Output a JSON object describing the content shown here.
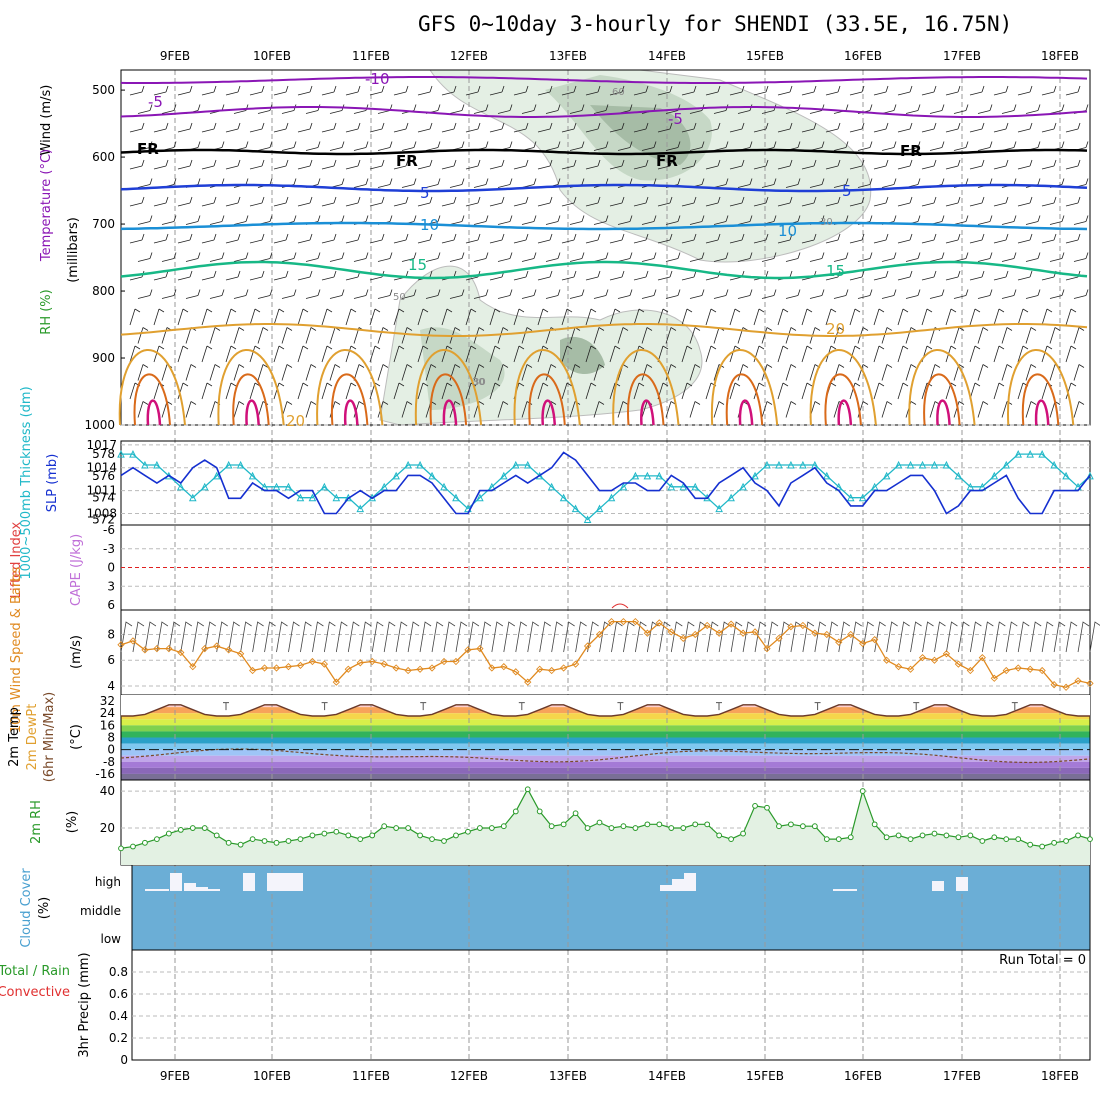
{
  "title": "GFS 0~10day 3-hourly for SHENDI (33.5E, 16.75N)",
  "colors": {
    "temp_purple": "#8a16b5",
    "temp_black": "#000000",
    "temp_blue": "#1f3fd6",
    "temp_cyan": "#1a8fd6",
    "temp_green": "#17b886",
    "temp_orange": "#e0a030",
    "temp_dorange": "#d96a1a",
    "temp_magenta": "#d0107a",
    "rh_green": "#9fc79f",
    "slp": "#1530d0",
    "thickness": "#20b8c8",
    "wind_speed": "#e08a20",
    "rh2m": "#2a9a2a",
    "cloud_bg": "#6baed6",
    "li_zero": "#e02020"
  },
  "dates": [
    "9FEB",
    "10FEB",
    "11FEB",
    "12FEB",
    "13FEB",
    "14FEB",
    "15FEB",
    "16FEB",
    "17FEB",
    "18FEB"
  ],
  "panels": {
    "upper": {
      "labels": [
        "Wind (m/s)",
        "Temperature (°C)",
        "RH (%)",
        "(millibars)"
      ],
      "ticks": [
        "500",
        "600",
        "700",
        "800",
        "900",
        "1000"
      ],
      "contour_labels": [
        "-10",
        "-5",
        "-5",
        "FR",
        "FR",
        "FR",
        "FR",
        "5",
        "5",
        "10",
        "10",
        "15",
        "15",
        "20",
        "20"
      ],
      "rh_labels": [
        "60",
        "30",
        "30",
        "50",
        "30"
      ]
    },
    "pressure": {
      "labels": [
        "1000~500mb Thickness (dm)",
        "SLP (mb)"
      ],
      "left_ticks": [
        "578",
        "576",
        "574",
        "572"
      ],
      "right_ticks": [
        "1017",
        "1014",
        "1011",
        "1008"
      ]
    },
    "stability": {
      "labels": [
        "Lifted Index",
        "CAPE (J/kg)"
      ],
      "ticks": [
        "-6",
        "-3",
        "0",
        "3",
        "6"
      ]
    },
    "wind": {
      "labels": [
        "10m Wind Speed & Barbs",
        "(m/s)"
      ],
      "ticks": [
        "8",
        "6",
        "4"
      ]
    },
    "temp": {
      "labels": [
        "2m Temp",
        "2m DewPt",
        "(6hr Min/Max)",
        "(°C)"
      ],
      "ticks": [
        "32",
        "24",
        "16",
        "8",
        "0",
        "-8",
        "-16"
      ]
    },
    "rh": {
      "labels": [
        "2m RH",
        "(%)"
      ],
      "ticks": [
        "40",
        "20"
      ]
    },
    "cloud": {
      "labels": [
        "Cloud Cover",
        "(%)"
      ],
      "ticks": [
        "high",
        "middle",
        "low"
      ]
    },
    "precip": {
      "labels": [
        "Total / Rain",
        "Convective",
        "3hr Precip (mm)"
      ],
      "ticks": [
        "0.8",
        "0.6",
        "0.4",
        "0.2",
        "0"
      ],
      "run_total": "Run Total = 0"
    }
  },
  "chart_data": [
    {
      "type": "line",
      "title": "1000~500mb Thickness / SLP",
      "ylabel": "SLP (mb)",
      "series": [
        {
          "name": "SLP (mb)",
          "values": [
            1013,
            1014,
            1013,
            1012,
            1013,
            1012,
            1014,
            1015,
            1014,
            1010,
            1010,
            1012,
            1011,
            1011,
            1010,
            1011,
            1011,
            1008,
            1008,
            1010,
            1011,
            1010,
            1011,
            1011,
            1013,
            1013,
            1012,
            1010,
            1008,
            1008,
            1011,
            1011,
            1012,
            1013,
            1012,
            1013,
            1014,
            1016,
            1015,
            1013,
            1011,
            1011,
            1012,
            1012,
            1011,
            1011,
            1013,
            1012,
            1010,
            1010,
            1012,
            1013,
            1014,
            1012,
            1011,
            1009,
            1012,
            1013,
            1014,
            1012,
            1011,
            1009,
            1009,
            1011,
            1011,
            1012,
            1013,
            1013,
            1011,
            1008,
            1009,
            1011,
            1011,
            1012,
            1013,
            1010,
            1008,
            1008,
            1011,
            1011,
            1011,
            1013
          ]
        },
        {
          "name": "1000~500mb Thickness (dm)",
          "values": [
            578,
            578,
            577,
            577,
            576,
            575,
            574,
            575,
            576,
            577,
            577,
            576,
            575,
            575,
            575,
            574,
            574,
            575,
            574,
            574,
            573,
            574,
            575,
            576,
            577,
            577,
            576,
            575,
            574,
            573,
            574,
            575,
            576,
            577,
            577,
            576,
            575,
            574,
            573,
            572,
            573,
            574,
            575,
            576,
            576,
            576,
            575,
            575,
            575,
            574,
            573,
            574,
            575,
            576,
            577,
            577,
            577,
            577,
            577,
            576,
            575,
            574,
            574,
            575,
            576,
            577,
            577,
            577,
            577,
            577,
            576,
            575,
            575,
            576,
            577,
            578,
            578,
            578,
            577,
            576,
            575,
            576
          ]
        }
      ],
      "left_ylim": [
        571.5,
        579.2
      ],
      "right_ylim": [
        1006.5,
        1017.5
      ]
    },
    {
      "type": "line",
      "title": "10m Wind Speed",
      "ylabel": "(m/s)",
      "values": [
        7.2,
        7.5,
        6.8,
        6.9,
        6.9,
        6.6,
        5.5,
        6.9,
        7.1,
        6.8,
        6.5,
        5.2,
        5.4,
        5.4,
        5.5,
        5.6,
        5.9,
        5.7,
        4.3,
        5.3,
        5.8,
        5.9,
        5.7,
        5.4,
        5.2,
        5.3,
        5.4,
        5.9,
        5.9,
        6.8,
        6.9,
        5.4,
        5.5,
        5.1,
        4.3,
        5.3,
        5.2,
        5.4,
        5.7,
        7.1,
        8.0,
        9.0,
        9.0,
        9.0,
        8.1,
        8.9,
        8.2,
        7.7,
        8.0,
        8.7,
        8.1,
        8.8,
        8.1,
        8.2,
        6.9,
        7.7,
        8.6,
        8.7,
        8.1,
        8.0,
        7.4,
        8.0,
        7.3,
        7.6,
        6.0,
        5.5,
        5.3,
        6.2,
        6.0,
        6.5,
        5.7,
        5.2,
        6.2,
        4.6,
        5.2,
        5.4,
        5.3,
        5.2,
        4.1,
        3.9,
        4.4,
        4.2
      ],
      "ylim": [
        3.3,
        9.9
      ]
    },
    {
      "type": "area",
      "title": "2m RH",
      "ylabel": "(%)",
      "values": [
        9,
        10,
        12,
        14,
        17,
        19,
        20,
        20,
        16,
        12,
        11,
        14,
        13,
        12,
        13,
        14,
        16,
        17,
        18,
        16,
        14,
        16,
        21,
        20,
        20,
        16,
        14,
        13,
        16,
        18,
        20,
        20,
        21,
        29,
        41,
        29,
        21,
        22,
        28,
        20,
        23,
        20,
        21,
        20,
        22,
        22,
        20,
        20,
        22,
        22,
        16,
        14,
        17,
        32,
        31,
        21,
        22,
        21,
        21,
        14,
        14,
        15,
        40,
        22,
        15,
        16,
        14,
        16,
        17,
        16,
        15,
        16,
        13,
        15,
        14,
        14,
        11,
        10,
        12,
        13,
        16,
        14
      ]
    }
  ]
}
